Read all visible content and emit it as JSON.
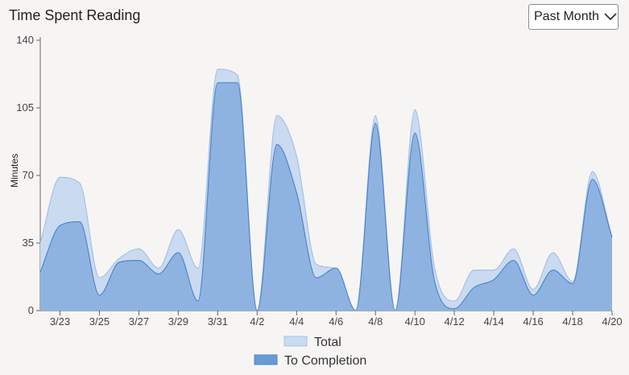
{
  "header": {
    "title": "Time Spent Reading",
    "period_label": "Past Month"
  },
  "colors": {
    "total_fill": "#c9daf1",
    "total_stroke": "#a7c2e6",
    "completion_fill": "#8fb3e0",
    "completion_stroke": "#4f86cc",
    "axis": "#666666"
  },
  "chart_data": {
    "type": "area",
    "title": "Time Spent Reading",
    "xlabel": "",
    "ylabel": "Minutes",
    "ylim": [
      0,
      140
    ],
    "yticks": [
      0,
      35,
      70,
      105,
      140
    ],
    "x_tick_labels": [
      "3/23",
      "3/25",
      "3/27",
      "3/29",
      "3/31",
      "4/2",
      "4/4",
      "4/6",
      "4/8",
      "4/10",
      "4/12",
      "4/14",
      "4/16",
      "4/18",
      "4/20"
    ],
    "x": [
      "3/22",
      "3/23",
      "3/24",
      "3/25",
      "3/26",
      "3/27",
      "3/28",
      "3/29",
      "3/30",
      "3/31",
      "4/1",
      "4/2",
      "4/3",
      "4/4",
      "4/5",
      "4/6",
      "4/7",
      "4/8",
      "4/9",
      "4/10",
      "4/11",
      "4/12",
      "4/13",
      "4/14",
      "4/15",
      "4/16",
      "4/17",
      "4/18",
      "4/19",
      "4/20"
    ],
    "series": [
      {
        "name": "Total",
        "values": [
          35,
          69,
          66,
          17,
          27,
          32,
          22,
          42,
          22,
          125,
          122,
          0,
          101,
          80,
          24,
          22,
          0,
          101,
          0,
          104,
          22,
          5,
          21,
          21,
          32,
          11,
          30,
          15,
          72,
          38
        ]
      },
      {
        "name": "To Completion",
        "values": [
          20,
          44,
          46,
          8,
          25,
          26,
          19,
          30,
          5,
          118,
          118,
          0,
          86,
          61,
          17,
          22,
          0,
          97,
          0,
          92,
          15,
          1,
          12,
          16,
          26,
          8,
          21,
          14,
          68,
          38
        ]
      }
    ],
    "legend": {
      "position": "bottom-center",
      "entries": [
        "Total",
        "To Completion"
      ]
    },
    "grid": false
  }
}
